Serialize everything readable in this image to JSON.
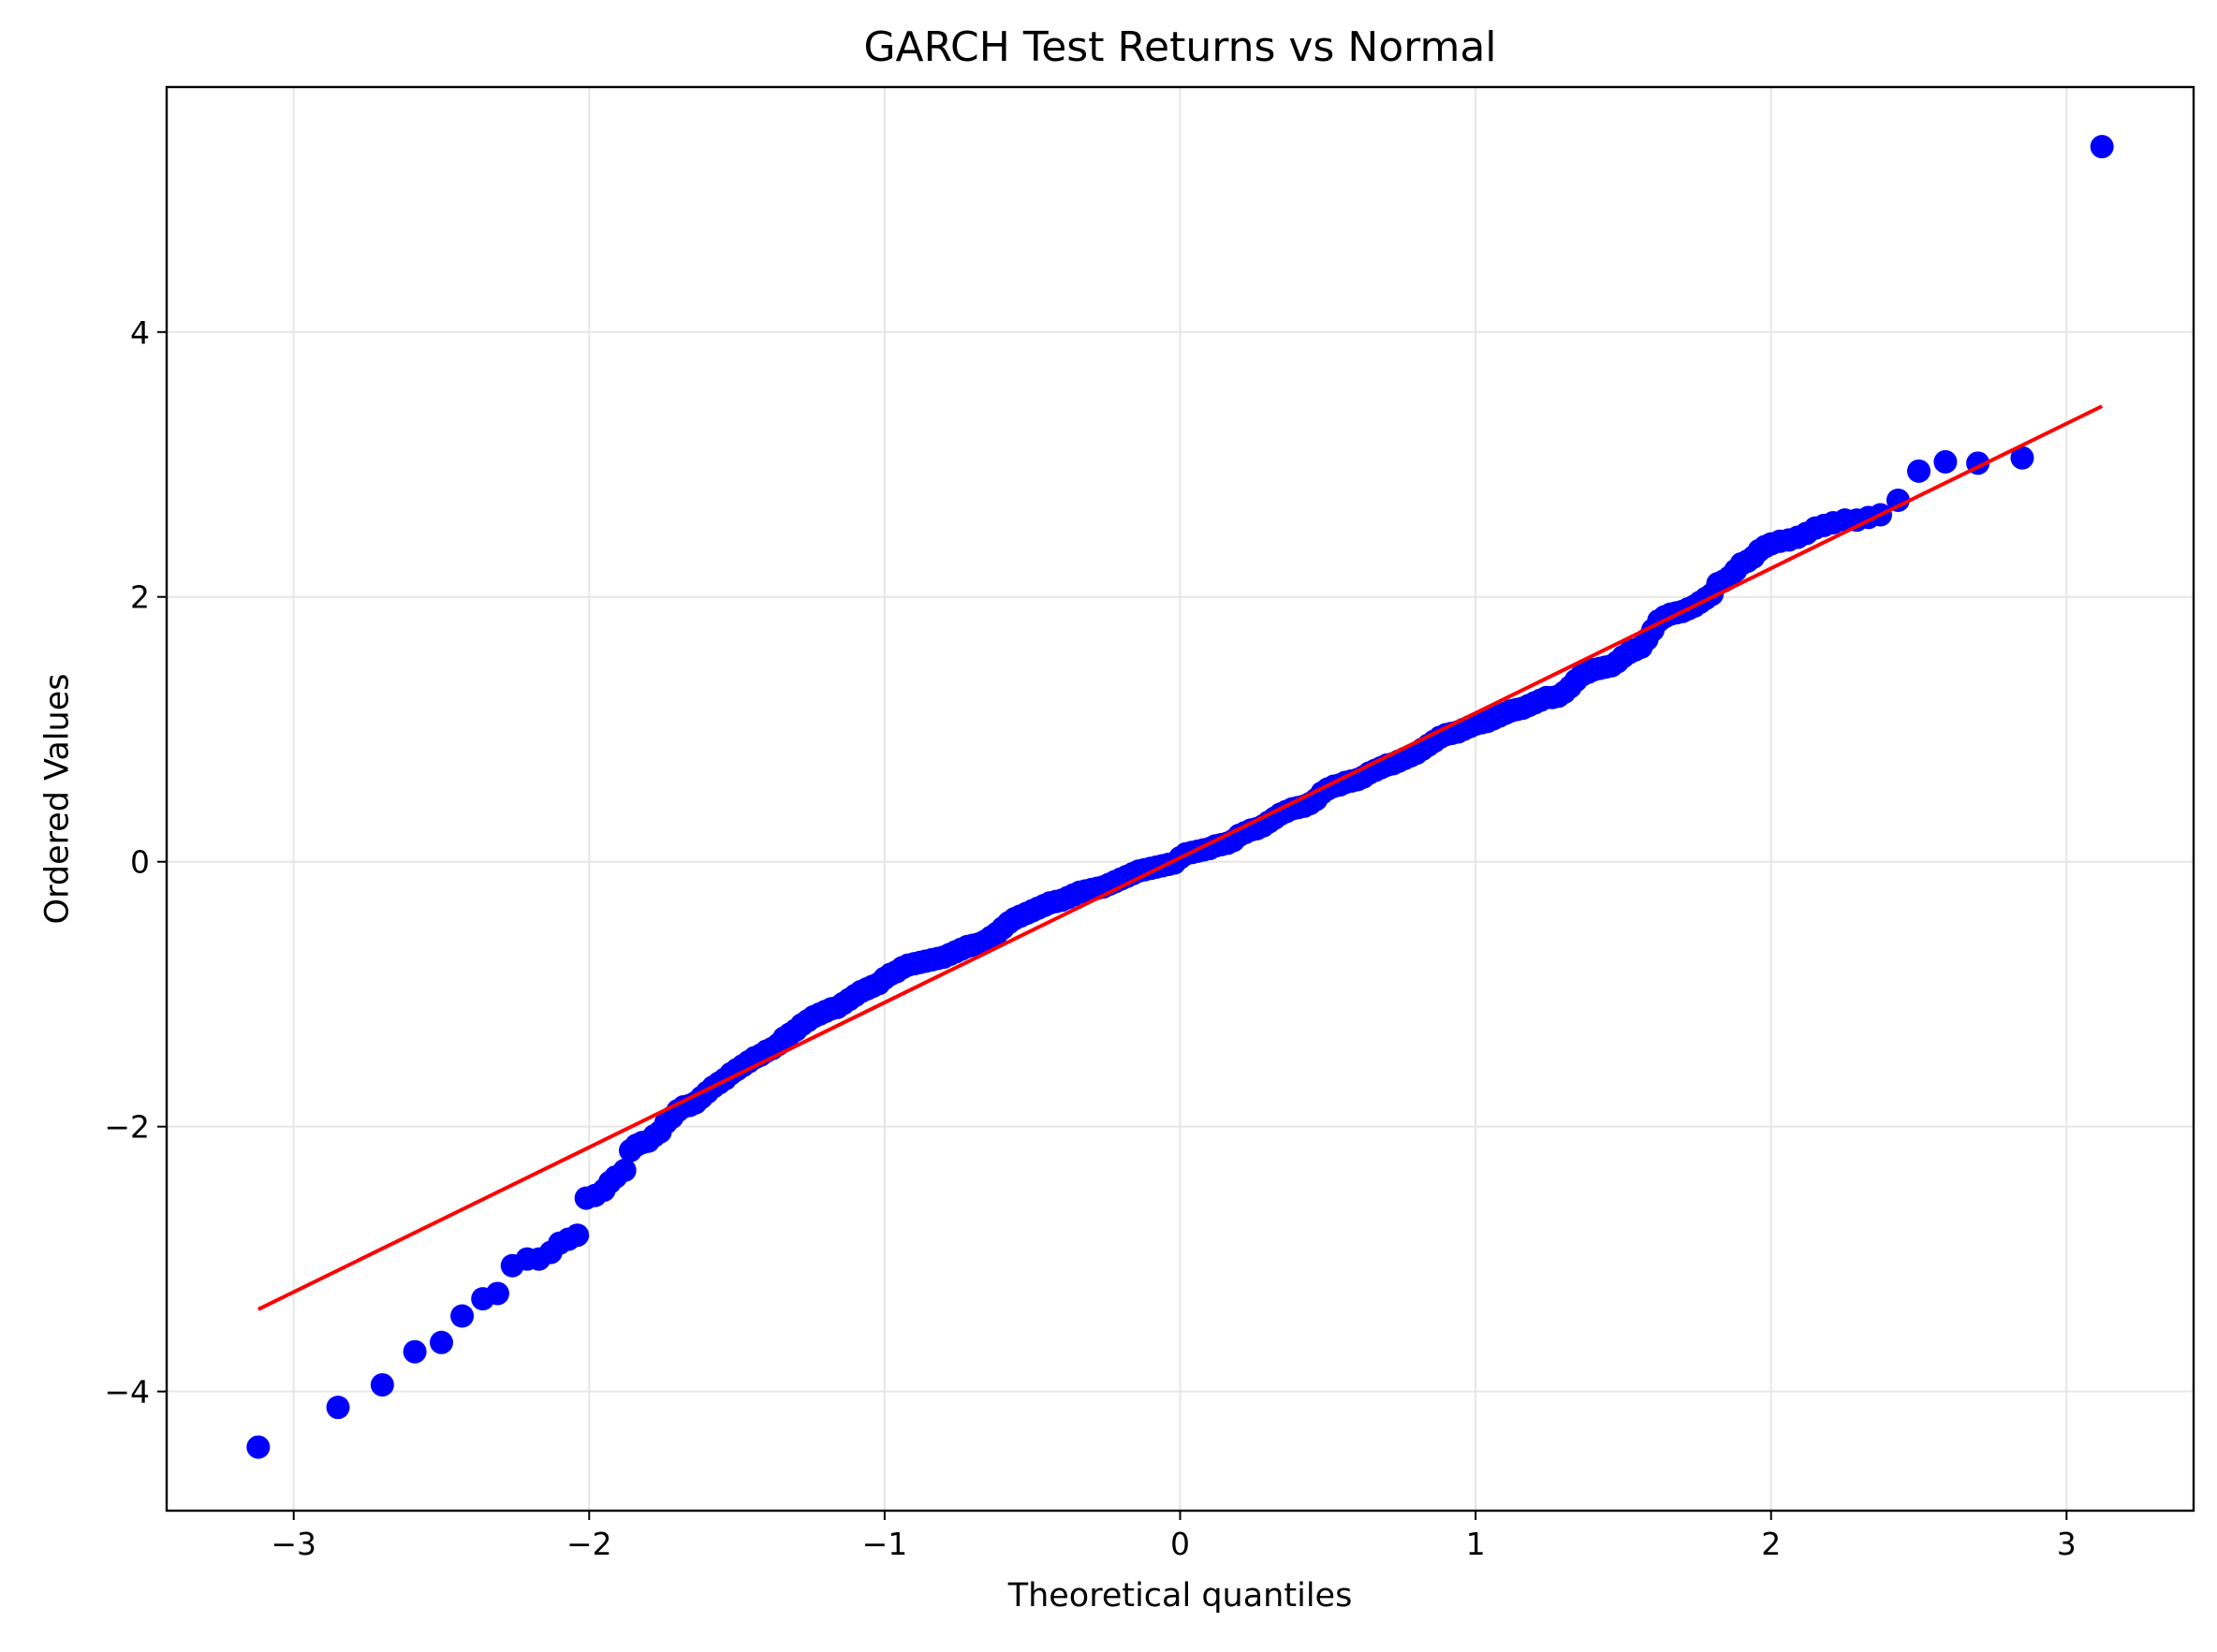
{
  "chart_data": {
    "type": "scatter",
    "title": "GARCH Test Returns vs Normal",
    "xlabel": "Theoretical quantiles",
    "ylabel": "Ordered Values",
    "xlim": [
      -3.43,
      3.43
    ],
    "ylim": [
      -4.9,
      5.85
    ],
    "x_ticks": [
      {
        "value": -3,
        "label": "−3"
      },
      {
        "value": -2,
        "label": "−2"
      },
      {
        "value": -1,
        "label": "−1"
      },
      {
        "value": 0,
        "label": "0"
      },
      {
        "value": 1,
        "label": "1"
      },
      {
        "value": 2,
        "label": "2"
      },
      {
        "value": 3,
        "label": "3"
      }
    ],
    "y_ticks": [
      {
        "value": -4,
        "label": "−4"
      },
      {
        "value": -2,
        "label": "−2"
      },
      {
        "value": 0,
        "label": "0"
      },
      {
        "value": 2,
        "label": "2"
      },
      {
        "value": 4,
        "label": "4"
      }
    ],
    "grid": true,
    "colors": {
      "points": "#0000ff",
      "line": "#ff0000",
      "grid": "#e6e6e6"
    },
    "series": [
      {
        "type": "scatter",
        "points": [
          [
            -3.12,
            -4.42
          ],
          [
            -2.85,
            -4.12
          ],
          [
            -2.7,
            -3.95
          ],
          [
            -2.59,
            -3.7
          ],
          [
            -2.5,
            -3.63
          ],
          [
            -2.43,
            -3.43
          ],
          [
            -2.36,
            -3.3
          ],
          [
            -2.31,
            -3.26
          ],
          [
            -2.26,
            -3.05
          ],
          [
            -2.21,
            -3.0
          ],
          [
            -2.17,
            -3.0
          ],
          [
            -2.13,
            -2.95
          ],
          [
            -2.1,
            -2.88
          ],
          [
            -2.07,
            -2.85
          ],
          [
            -2.04,
            -2.82
          ],
          [
            -2.01,
            -2.54
          ],
          [
            -1.98,
            -2.52
          ],
          [
            -1.95,
            -2.48
          ],
          [
            -1.93,
            -2.42
          ],
          [
            -1.91,
            -2.38
          ],
          [
            -1.88,
            -2.33
          ],
          [
            -1.86,
            -2.18
          ],
          [
            -1.84,
            -2.14
          ],
          [
            -1.82,
            -2.12
          ],
          [
            -1.8,
            -2.11
          ],
          [
            -1.78,
            -2.07
          ],
          [
            -1.76,
            -2.04
          ],
          [
            -1.74,
            -1.97
          ],
          [
            -1.72,
            -1.93
          ],
          [
            -1.7,
            -1.88
          ],
          [
            -1.68,
            -1.85
          ],
          [
            -1.66,
            -1.84
          ],
          [
            -1.64,
            -1.82
          ],
          [
            -1.62,
            -1.78
          ],
          [
            -1.6,
            -1.74
          ],
          [
            -1.58,
            -1.7
          ],
          [
            -1.56,
            -1.67
          ],
          [
            -1.54,
            -1.64
          ],
          [
            -1.52,
            -1.6
          ],
          [
            -1.5,
            -1.57
          ],
          [
            -1.48,
            -1.54
          ],
          [
            -1.46,
            -1.51
          ],
          [
            -1.44,
            -1.48
          ],
          [
            -1.42,
            -1.46
          ],
          [
            -1.4,
            -1.43
          ],
          [
            -1.38,
            -1.41
          ],
          [
            -1.36,
            -1.38
          ],
          [
            -1.34,
            -1.33
          ],
          [
            -1.32,
            -1.3
          ],
          [
            -1.3,
            -1.27
          ],
          [
            -1.28,
            -1.23
          ],
          [
            -1.26,
            -1.2
          ],
          [
            -1.24,
            -1.17
          ],
          [
            -1.22,
            -1.15
          ],
          [
            -1.2,
            -1.13
          ],
          [
            -1.18,
            -1.11
          ],
          [
            -1.16,
            -1.1
          ],
          [
            -1.14,
            -1.07
          ],
          [
            -1.12,
            -1.04
          ],
          [
            -1.1,
            -1.01
          ],
          [
            -1.08,
            -0.98
          ],
          [
            -1.06,
            -0.96
          ],
          [
            -1.04,
            -0.94
          ],
          [
            -1.02,
            -0.92
          ],
          [
            -1.0,
            -0.88
          ],
          [
            -0.98,
            -0.85
          ],
          [
            -0.96,
            -0.83
          ],
          [
            -0.94,
            -0.8
          ],
          [
            -0.92,
            -0.78
          ],
          [
            -0.9,
            -0.77
          ],
          [
            -0.88,
            -0.76
          ],
          [
            -0.86,
            -0.75
          ],
          [
            -0.84,
            -0.74
          ],
          [
            -0.82,
            -0.73
          ],
          [
            -0.8,
            -0.72
          ],
          [
            -0.78,
            -0.7
          ],
          [
            -0.76,
            -0.68
          ],
          [
            -0.74,
            -0.66
          ],
          [
            -0.72,
            -0.64
          ],
          [
            -0.7,
            -0.63
          ],
          [
            -0.68,
            -0.62
          ],
          [
            -0.66,
            -0.6
          ],
          [
            -0.64,
            -0.57
          ],
          [
            -0.62,
            -0.54
          ],
          [
            -0.6,
            -0.5
          ],
          [
            -0.58,
            -0.46
          ],
          [
            -0.56,
            -0.43
          ],
          [
            -0.54,
            -0.41
          ],
          [
            -0.52,
            -0.39
          ],
          [
            -0.5,
            -0.37
          ],
          [
            -0.48,
            -0.35
          ],
          [
            -0.46,
            -0.33
          ],
          [
            -0.44,
            -0.31
          ],
          [
            -0.42,
            -0.3
          ],
          [
            -0.4,
            -0.29
          ],
          [
            -0.38,
            -0.27
          ],
          [
            -0.36,
            -0.25
          ],
          [
            -0.34,
            -0.23
          ],
          [
            -0.32,
            -0.22
          ],
          [
            -0.3,
            -0.21
          ],
          [
            -0.28,
            -0.2
          ],
          [
            -0.26,
            -0.19
          ],
          [
            -0.24,
            -0.17
          ],
          [
            -0.22,
            -0.15
          ],
          [
            -0.2,
            -0.13
          ],
          [
            -0.18,
            -0.11
          ],
          [
            -0.16,
            -0.09
          ],
          [
            -0.14,
            -0.07
          ],
          [
            -0.12,
            -0.06
          ],
          [
            -0.1,
            -0.05
          ],
          [
            -0.08,
            -0.04
          ],
          [
            -0.06,
            -0.03
          ],
          [
            -0.04,
            -0.02
          ],
          [
            -0.02,
            -0.01
          ],
          [
            0.0,
            0.03
          ],
          [
            0.02,
            0.06
          ],
          [
            0.04,
            0.07
          ],
          [
            0.06,
            0.08
          ],
          [
            0.08,
            0.09
          ],
          [
            0.1,
            0.1
          ],
          [
            0.12,
            0.12
          ],
          [
            0.14,
            0.13
          ],
          [
            0.16,
            0.14
          ],
          [
            0.18,
            0.16
          ],
          [
            0.2,
            0.2
          ],
          [
            0.22,
            0.22
          ],
          [
            0.24,
            0.24
          ],
          [
            0.26,
            0.25
          ],
          [
            0.28,
            0.27
          ],
          [
            0.3,
            0.3
          ],
          [
            0.32,
            0.33
          ],
          [
            0.34,
            0.36
          ],
          [
            0.36,
            0.38
          ],
          [
            0.38,
            0.4
          ],
          [
            0.4,
            0.41
          ],
          [
            0.42,
            0.42
          ],
          [
            0.44,
            0.44
          ],
          [
            0.46,
            0.47
          ],
          [
            0.48,
            0.52
          ],
          [
            0.5,
            0.55
          ],
          [
            0.52,
            0.57
          ],
          [
            0.54,
            0.58
          ],
          [
            0.56,
            0.6
          ],
          [
            0.58,
            0.61
          ],
          [
            0.6,
            0.62
          ],
          [
            0.62,
            0.64
          ],
          [
            0.64,
            0.67
          ],
          [
            0.66,
            0.69
          ],
          [
            0.68,
            0.71
          ],
          [
            0.7,
            0.73
          ],
          [
            0.72,
            0.74
          ],
          [
            0.74,
            0.76
          ],
          [
            0.76,
            0.78
          ],
          [
            0.78,
            0.8
          ],
          [
            0.8,
            0.82
          ],
          [
            0.82,
            0.85
          ],
          [
            0.84,
            0.88
          ],
          [
            0.86,
            0.91
          ],
          [
            0.88,
            0.94
          ],
          [
            0.9,
            0.96
          ],
          [
            0.92,
            0.97
          ],
          [
            0.94,
            0.98
          ],
          [
            0.96,
            1.0
          ],
          [
            0.98,
            1.02
          ],
          [
            1.0,
            1.04
          ],
          [
            1.02,
            1.05
          ],
          [
            1.04,
            1.06
          ],
          [
            1.06,
            1.08
          ],
          [
            1.08,
            1.1
          ],
          [
            1.1,
            1.12
          ],
          [
            1.12,
            1.14
          ],
          [
            1.14,
            1.15
          ],
          [
            1.16,
            1.16
          ],
          [
            1.18,
            1.18
          ],
          [
            1.2,
            1.2
          ],
          [
            1.22,
            1.22
          ],
          [
            1.24,
            1.24
          ],
          [
            1.26,
            1.24
          ],
          [
            1.28,
            1.25
          ],
          [
            1.3,
            1.28
          ],
          [
            1.32,
            1.32
          ],
          [
            1.34,
            1.37
          ],
          [
            1.36,
            1.41
          ],
          [
            1.38,
            1.43
          ],
          [
            1.4,
            1.45
          ],
          [
            1.42,
            1.46
          ],
          [
            1.44,
            1.47
          ],
          [
            1.46,
            1.48
          ],
          [
            1.48,
            1.51
          ],
          [
            1.5,
            1.55
          ],
          [
            1.52,
            1.58
          ],
          [
            1.54,
            1.6
          ],
          [
            1.56,
            1.62
          ],
          [
            1.58,
            1.68
          ],
          [
            1.6,
            1.75
          ],
          [
            1.62,
            1.82
          ],
          [
            1.64,
            1.85
          ],
          [
            1.66,
            1.87
          ],
          [
            1.68,
            1.88
          ],
          [
            1.7,
            1.89
          ],
          [
            1.72,
            1.91
          ],
          [
            1.74,
            1.93
          ],
          [
            1.76,
            1.96
          ],
          [
            1.78,
            1.99
          ],
          [
            1.8,
            2.02
          ],
          [
            1.82,
            2.1
          ],
          [
            1.84,
            2.12
          ],
          [
            1.86,
            2.15
          ],
          [
            1.88,
            2.2
          ],
          [
            1.9,
            2.25
          ],
          [
            1.92,
            2.27
          ],
          [
            1.94,
            2.3
          ],
          [
            1.96,
            2.35
          ],
          [
            1.98,
            2.38
          ],
          [
            2.0,
            2.4
          ],
          [
            2.03,
            2.42
          ],
          [
            2.06,
            2.43
          ],
          [
            2.09,
            2.45
          ],
          [
            2.12,
            2.48
          ],
          [
            2.15,
            2.52
          ],
          [
            2.18,
            2.54
          ],
          [
            2.21,
            2.56
          ],
          [
            2.25,
            2.58
          ],
          [
            2.29,
            2.58
          ],
          [
            2.33,
            2.6
          ],
          [
            2.37,
            2.62
          ],
          [
            2.43,
            2.73
          ],
          [
            2.5,
            2.95
          ],
          [
            2.59,
            3.02
          ],
          [
            2.7,
            3.01
          ],
          [
            2.85,
            3.05
          ],
          [
            3.12,
            5.4
          ]
        ]
      },
      {
        "type": "line",
        "points": [
          [
            -3.12,
            -3.38
          ],
          [
            3.12,
            3.44
          ]
        ]
      }
    ]
  }
}
